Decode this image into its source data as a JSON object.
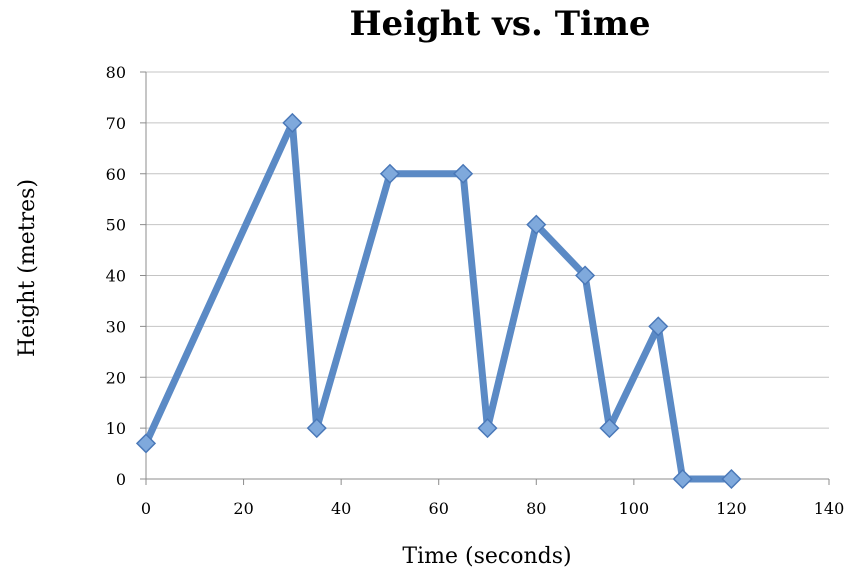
{
  "chart_data": {
    "type": "line",
    "title": "Height vs. Time",
    "xlabel": "Time (seconds)",
    "ylabel": "Height (metres)",
    "xlim": [
      0,
      140
    ],
    "ylim": [
      0,
      80
    ],
    "xticks": [
      0,
      20,
      40,
      60,
      80,
      100,
      120,
      140
    ],
    "yticks": [
      0,
      10,
      20,
      30,
      40,
      50,
      60,
      70,
      80
    ],
    "grid": true,
    "legend": "none",
    "colors": {
      "series_line": "#5b8ac5",
      "marker_fill": "#7fa9dc",
      "marker_stroke": "#4a78b8",
      "gridline": "#c4c4c4"
    },
    "series": [
      {
        "marker": "diamond",
        "x": [
          0,
          30,
          35,
          50,
          65,
          70,
          80,
          90,
          95,
          105,
          110,
          120
        ],
        "y": [
          7,
          70,
          10,
          60,
          60,
          10,
          50,
          40,
          10,
          30,
          0,
          0
        ]
      }
    ]
  }
}
